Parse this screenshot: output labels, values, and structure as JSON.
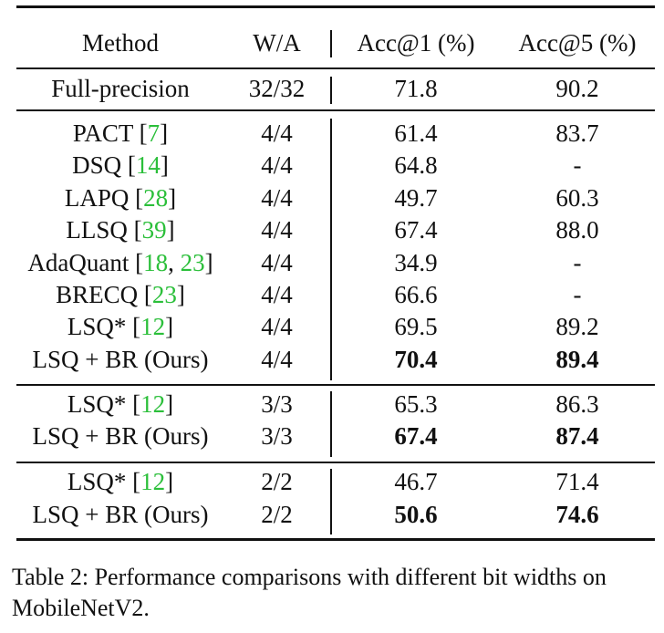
{
  "header": {
    "method": "Method",
    "wa": "W/A",
    "acc1": "Acc@1 (%)",
    "acc5": "Acc@5 (%)"
  },
  "full_precision": {
    "method": "Full-precision",
    "wa": "32/32",
    "acc1": "71.8",
    "acc5": "90.2"
  },
  "group_4bit": [
    {
      "name": "PACT",
      "refs": [
        "7"
      ],
      "wa": "4/4",
      "acc1": "61.4",
      "acc5": "83.7",
      "bold": false
    },
    {
      "name": "DSQ",
      "refs": [
        "14"
      ],
      "wa": "4/4",
      "acc1": "64.8",
      "acc5": "-",
      "bold": false
    },
    {
      "name": "LAPQ",
      "refs": [
        "28"
      ],
      "wa": "4/4",
      "acc1": "49.7",
      "acc5": "60.3",
      "bold": false
    },
    {
      "name": "LLSQ",
      "refs": [
        "39"
      ],
      "wa": "4/4",
      "acc1": "67.4",
      "acc5": "88.0",
      "bold": false
    },
    {
      "name": "AdaQuant",
      "refs": [
        "18",
        "23"
      ],
      "wa": "4/4",
      "acc1": "34.9",
      "acc5": "-",
      "bold": false
    },
    {
      "name": "BRECQ",
      "refs": [
        "23"
      ],
      "wa": "4/4",
      "acc1": "66.6",
      "acc5": "-",
      "bold": false
    },
    {
      "name": "LSQ*",
      "refs": [
        "12"
      ],
      "wa": "4/4",
      "acc1": "69.5",
      "acc5": "89.2",
      "bold": false
    },
    {
      "name": "LSQ + BR (Ours)",
      "refs": [],
      "wa": "4/4",
      "acc1": "70.4",
      "acc5": "89.4",
      "bold": true
    }
  ],
  "group_3bit": [
    {
      "name": "LSQ*",
      "refs": [
        "12"
      ],
      "wa": "3/3",
      "acc1": "65.3",
      "acc5": "86.3",
      "bold": false
    },
    {
      "name": "LSQ + BR (Ours)",
      "refs": [],
      "wa": "3/3",
      "acc1": "67.4",
      "acc5": "87.4",
      "bold": true
    }
  ],
  "group_2bit": [
    {
      "name": "LSQ*",
      "refs": [
        "12"
      ],
      "wa": "2/2",
      "acc1": "46.7",
      "acc5": "71.4",
      "bold": false
    },
    {
      "name": "LSQ + BR (Ours)",
      "refs": [],
      "wa": "2/2",
      "acc1": "50.6",
      "acc5": "74.6",
      "bold": true
    }
  ],
  "caption": "Table 2: Performance comparisons with different bit widths on MobileNetV2.",
  "colors": {
    "citation": "#2bbf3a",
    "text": "#111111",
    "rules": "#111111"
  }
}
